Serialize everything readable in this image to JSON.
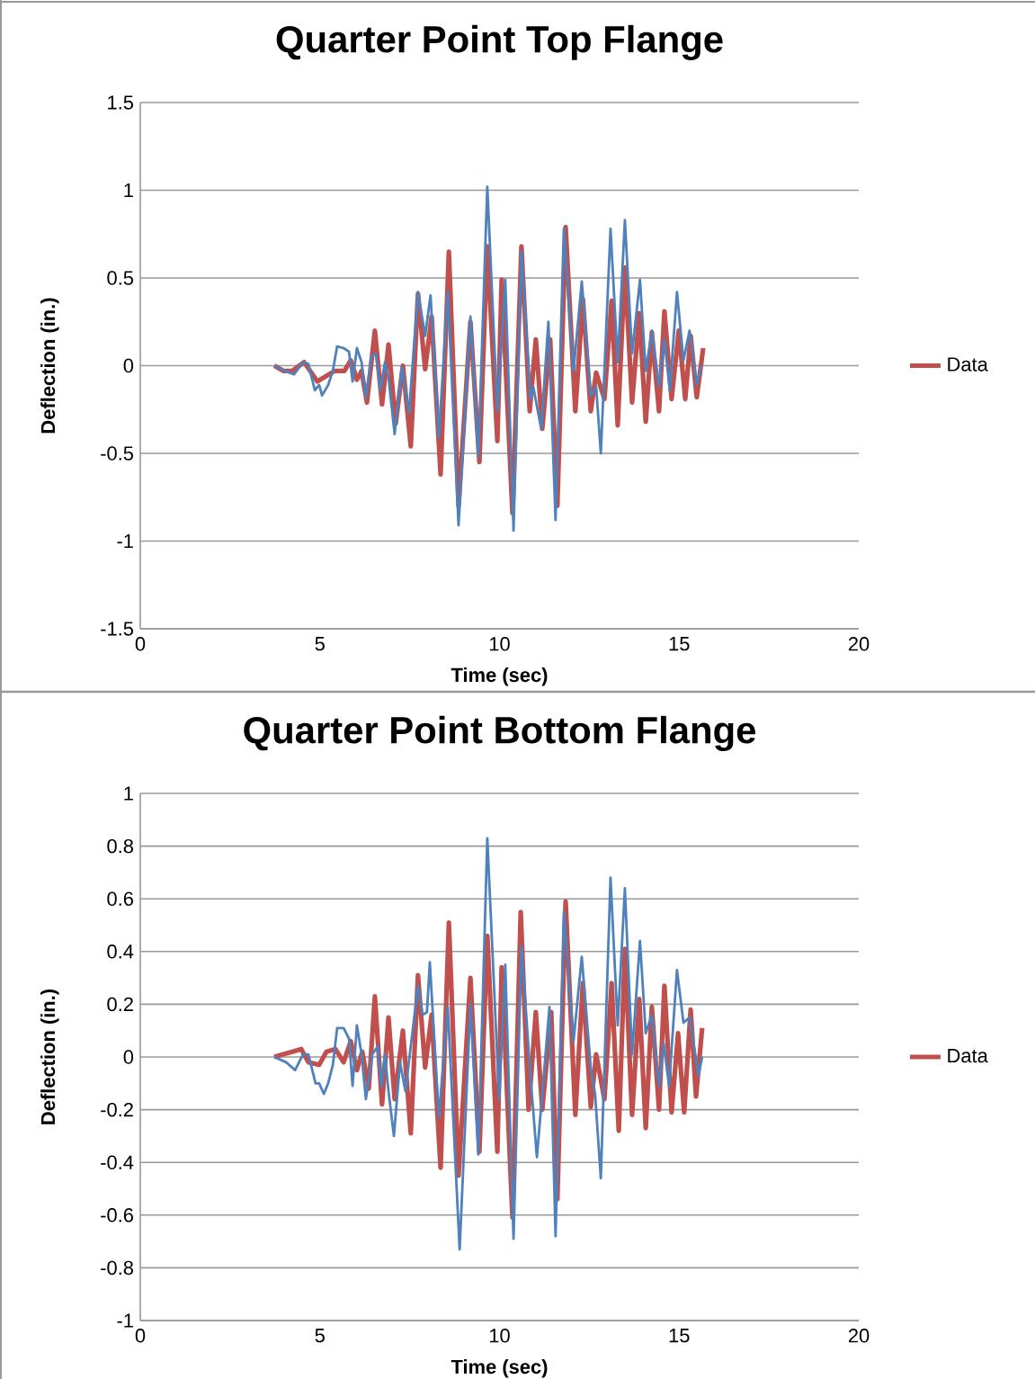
{
  "chart_data": [
    {
      "type": "line",
      "title": "Quarter Point Top Flange",
      "xlabel": "Time (sec)",
      "ylabel": "Deflection (in.)",
      "xlim": [
        0,
        20
      ],
      "xticks": [
        0,
        5,
        10,
        15,
        20
      ],
      "ylim": [
        -1.5,
        1.5
      ],
      "yticks": [
        -1.5,
        -1,
        -0.5,
        0,
        0.5,
        1,
        1.5
      ],
      "grid": "y",
      "legend": "right",
      "series": [
        {
          "name": "Data",
          "color": "#c0504d",
          "x": [
            3.73,
            3.98,
            4.23,
            4.56,
            4.93,
            5.41,
            5.68,
            5.86,
            6.03,
            6.16,
            6.31,
            6.53,
            6.73,
            6.91,
            7.11,
            7.31,
            7.53,
            7.73,
            7.93,
            8.11,
            8.36,
            8.59,
            8.86,
            9.19,
            9.44,
            9.66,
            9.94,
            10.06,
            10.36,
            10.61,
            10.84,
            11.01,
            11.19,
            11.41,
            11.61,
            11.84,
            12.11,
            12.32,
            12.54,
            12.69,
            12.92,
            13.12,
            13.29,
            13.49,
            13.69,
            13.89,
            14.07,
            14.24,
            14.44,
            14.59,
            14.79,
            14.99,
            15.17,
            15.32,
            15.49,
            15.67
          ],
          "values": [
            0.0,
            -0.03,
            -0.03,
            0.02,
            -0.09,
            -0.03,
            -0.03,
            0.03,
            -0.08,
            -0.03,
            -0.21,
            0.2,
            -0.22,
            0.12,
            -0.33,
            0.0,
            -0.46,
            0.41,
            -0.02,
            0.28,
            -0.62,
            0.65,
            -0.8,
            0.25,
            -0.55,
            0.68,
            -0.43,
            0.49,
            -0.84,
            0.68,
            -0.26,
            0.15,
            -0.36,
            0.15,
            -0.8,
            0.79,
            -0.26,
            0.38,
            -0.26,
            -0.04,
            -0.19,
            0.37,
            -0.34,
            0.56,
            -0.21,
            0.3,
            -0.32,
            0.19,
            -0.26,
            0.31,
            -0.19,
            0.2,
            -0.19,
            0.17,
            -0.18,
            0.1
          ]
        },
        {
          "color": "#4f81bd",
          "x": [
            3.73,
            4.03,
            4.28,
            4.53,
            4.68,
            4.86,
            4.98,
            5.06,
            5.23,
            5.36,
            5.48,
            5.66,
            5.81,
            5.91,
            6.03,
            6.16,
            6.28,
            6.43,
            6.56,
            6.68,
            6.81,
            6.91,
            7.08,
            7.28,
            7.48,
            7.73,
            7.93,
            8.08,
            8.31,
            8.56,
            8.86,
            9.19,
            9.41,
            9.66,
            9.94,
            10.16,
            10.39,
            10.61,
            10.86,
            10.94,
            11.16,
            11.36,
            11.56,
            11.79,
            12.06,
            12.29,
            12.54,
            12.69,
            12.82,
            13.09,
            13.29,
            13.49,
            13.69,
            13.91,
            14.07,
            14.24,
            14.44,
            14.59,
            14.74,
            14.94,
            15.12,
            15.29,
            15.49,
            15.62
          ],
          "values": [
            0.0,
            -0.03,
            -0.05,
            0.02,
            0.01,
            -0.14,
            -0.11,
            -0.17,
            -0.11,
            -0.03,
            0.11,
            0.1,
            0.08,
            -0.09,
            0.1,
            0.02,
            -0.18,
            0.05,
            0.07,
            -0.14,
            0.02,
            -0.07,
            -0.39,
            -0.01,
            -0.27,
            0.42,
            0.17,
            0.4,
            -0.41,
            0.42,
            -0.91,
            0.28,
            -0.52,
            1.02,
            -0.26,
            0.49,
            -0.94,
            0.65,
            -0.19,
            -0.12,
            -0.36,
            0.25,
            -0.88,
            0.78,
            -0.03,
            0.48,
            -0.17,
            -0.12,
            -0.5,
            0.78,
            0.02,
            0.83,
            0.07,
            0.49,
            -0.03,
            0.2,
            -0.12,
            0.15,
            -0.14,
            0.42,
            0.03,
            0.2,
            -0.11,
            0.0
          ]
        }
      ]
    },
    {
      "type": "line",
      "title": "Quarter Point Bottom Flange",
      "xlabel": "Time (sec)",
      "ylabel": "Deflection (in.)",
      "xlim": [
        0,
        20
      ],
      "xticks": [
        0,
        5,
        10,
        15,
        20
      ],
      "ylim": [
        -1,
        1
      ],
      "yticks": [
        -1,
        -0.8,
        -0.6,
        -0.4,
        -0.2,
        0,
        0.2,
        0.4,
        0.6,
        0.8,
        1
      ],
      "grid": "y",
      "legend": "right",
      "series": [
        {
          "name": "Data",
          "color": "#c0504d",
          "x": [
            3.73,
            3.98,
            4.23,
            4.48,
            4.68,
            4.98,
            5.18,
            5.43,
            5.66,
            5.86,
            6.03,
            6.18,
            6.36,
            6.53,
            6.73,
            6.91,
            7.08,
            7.31,
            7.53,
            7.73,
            7.93,
            8.11,
            8.36,
            8.59,
            8.86,
            9.19,
            9.44,
            9.66,
            9.94,
            10.06,
            10.36,
            10.59,
            10.81,
            11.01,
            11.19,
            11.44,
            11.61,
            11.84,
            12.11,
            12.32,
            12.54,
            12.69,
            12.92,
            13.12,
            13.32,
            13.49,
            13.69,
            13.89,
            14.07,
            14.24,
            14.44,
            14.59,
            14.79,
            14.97,
            15.14,
            15.32,
            15.47,
            15.64
          ],
          "values": [
            0.0,
            0.01,
            0.02,
            0.03,
            -0.02,
            -0.03,
            0.02,
            0.03,
            -0.02,
            0.06,
            -0.05,
            0.02,
            -0.12,
            0.23,
            -0.18,
            0.15,
            -0.16,
            0.1,
            -0.29,
            0.31,
            -0.04,
            0.16,
            -0.42,
            0.51,
            -0.45,
            0.3,
            -0.36,
            0.46,
            -0.36,
            0.34,
            -0.61,
            0.55,
            -0.2,
            0.17,
            -0.2,
            0.17,
            -0.54,
            0.59,
            -0.22,
            0.28,
            -0.19,
            0.01,
            -0.16,
            0.28,
            -0.28,
            0.41,
            -0.22,
            0.22,
            -0.27,
            0.19,
            -0.2,
            0.27,
            -0.21,
            0.09,
            -0.21,
            0.18,
            -0.15,
            0.11
          ]
        },
        {
          "color": "#4f81bd",
          "x": [
            3.73,
            4.06,
            4.31,
            4.53,
            4.68,
            4.88,
            4.98,
            5.11,
            5.23,
            5.36,
            5.48,
            5.66,
            5.81,
            5.91,
            6.03,
            6.16,
            6.28,
            6.46,
            6.61,
            6.71,
            6.81,
            6.91,
            7.06,
            7.23,
            7.38,
            7.73,
            7.86,
            7.98,
            8.06,
            8.31,
            8.56,
            8.89,
            9.19,
            9.41,
            9.66,
            9.99,
            10.16,
            10.39,
            10.61,
            10.86,
            11.04,
            11.14,
            11.39,
            11.56,
            11.79,
            12.06,
            12.29,
            12.54,
            12.66,
            12.82,
            13.09,
            13.29,
            13.49,
            13.69,
            13.91,
            14.07,
            14.24,
            14.44,
            14.57,
            14.72,
            14.94,
            15.12,
            15.29,
            15.54,
            15.64
          ],
          "values": [
            0.0,
            -0.02,
            -0.05,
            0.01,
            0.01,
            -0.1,
            -0.1,
            -0.14,
            -0.1,
            -0.03,
            0.11,
            0.11,
            0.07,
            -0.11,
            0.12,
            0.01,
            -0.16,
            0.01,
            0.04,
            -0.11,
            0.01,
            -0.13,
            -0.3,
            -0.02,
            -0.13,
            0.27,
            0.16,
            0.17,
            0.36,
            -0.23,
            0.19,
            -0.73,
            0.2,
            -0.37,
            0.83,
            -0.16,
            0.35,
            -0.69,
            0.42,
            -0.07,
            -0.38,
            -0.22,
            0.19,
            -0.68,
            0.55,
            0.06,
            0.38,
            -0.04,
            -0.14,
            -0.46,
            0.68,
            0.12,
            0.64,
            0.01,
            0.44,
            0.09,
            0.16,
            -0.11,
            0.05,
            -0.11,
            0.33,
            0.13,
            0.15,
            -0.07,
            0.0
          ]
        }
      ]
    }
  ]
}
